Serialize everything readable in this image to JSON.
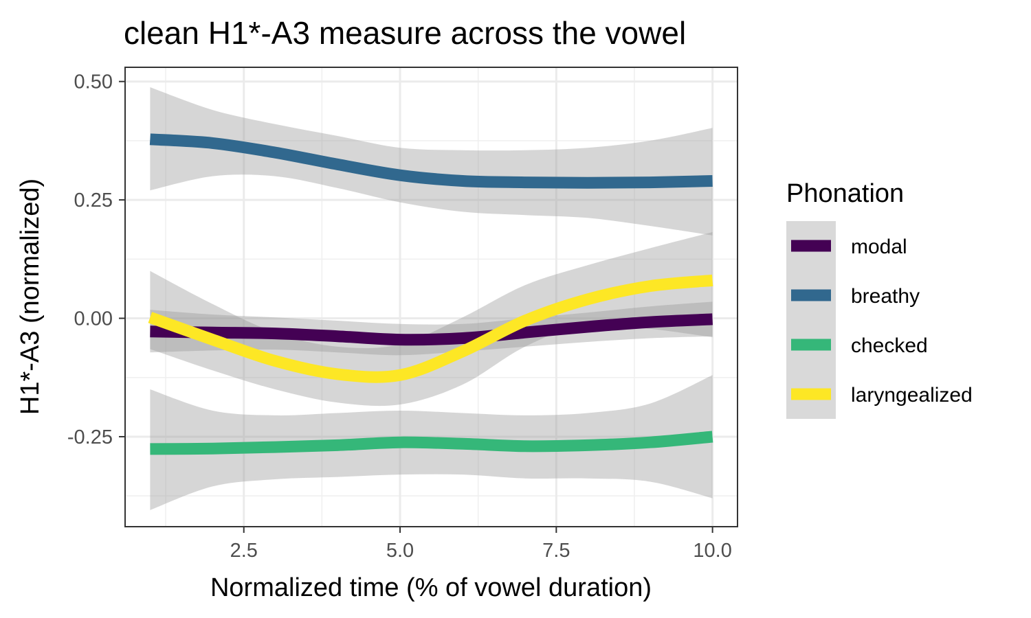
{
  "chart_data": {
    "type": "line",
    "title": "clean H1*-A3 measure across the vowel",
    "xlabel": "Normalized time (% of vowel duration)",
    "ylabel": "H1*-A3 (normalized)",
    "xlim": [
      0.6,
      10.4
    ],
    "ylim": [
      -0.44,
      0.53
    ],
    "xticks": [
      2.5,
      5.0,
      7.5,
      10.0
    ],
    "xtick_labels": [
      "2.5",
      "5.0",
      "7.5",
      "10.0"
    ],
    "yticks": [
      0.5,
      0.25,
      0.0,
      -0.25
    ],
    "ytick_labels": [
      "0.50",
      "0.25",
      "0.00",
      "-0.25"
    ],
    "grid": true,
    "legend": {
      "title": "Phonation",
      "position": "right"
    },
    "x": [
      1,
      2,
      3,
      4,
      5,
      6,
      7,
      8,
      9,
      10
    ],
    "series": [
      {
        "name": "modal",
        "color": "#440154",
        "values": [
          -0.028,
          -0.03,
          -0.032,
          -0.038,
          -0.045,
          -0.042,
          -0.03,
          -0.018,
          -0.008,
          -0.002
        ],
        "lower": [
          -0.072,
          -0.068,
          -0.066,
          -0.072,
          -0.078,
          -0.07,
          -0.06,
          -0.05,
          -0.042,
          -0.038
        ],
        "upper": [
          0.018,
          0.008,
          0.002,
          -0.005,
          -0.012,
          -0.012,
          0.0,
          0.012,
          0.025,
          0.035
        ]
      },
      {
        "name": "breathy",
        "color": "#31688E",
        "values": [
          0.378,
          0.37,
          0.35,
          0.325,
          0.302,
          0.29,
          0.287,
          0.286,
          0.287,
          0.29
        ],
        "lower": [
          0.27,
          0.3,
          0.3,
          0.275,
          0.245,
          0.225,
          0.218,
          0.212,
          0.195,
          0.175
        ],
        "upper": [
          0.488,
          0.44,
          0.41,
          0.385,
          0.36,
          0.355,
          0.355,
          0.36,
          0.375,
          0.402
        ]
      },
      {
        "name": "checked",
        "color": "#35B779",
        "values": [
          -0.276,
          -0.275,
          -0.272,
          -0.268,
          -0.262,
          -0.265,
          -0.27,
          -0.268,
          -0.262,
          -0.25
        ],
        "lower": [
          -0.405,
          -0.355,
          -0.34,
          -0.335,
          -0.33,
          -0.33,
          -0.338,
          -0.338,
          -0.345,
          -0.38
        ],
        "upper": [
          -0.15,
          -0.195,
          -0.205,
          -0.2,
          -0.195,
          -0.2,
          -0.205,
          -0.2,
          -0.18,
          -0.12
        ]
      },
      {
        "name": "laryngealized",
        "color": "#FDE725",
        "values": [
          0.002,
          -0.045,
          -0.09,
          -0.118,
          -0.12,
          -0.07,
          -0.005,
          0.04,
          0.068,
          0.08
        ],
        "lower": [
          -0.065,
          -0.11,
          -0.15,
          -0.178,
          -0.182,
          -0.14,
          -0.06,
          -0.012,
          -0.022,
          -0.04
        ],
        "upper": [
          0.1,
          0.03,
          -0.03,
          -0.06,
          -0.055,
          0.002,
          0.07,
          0.112,
          0.148,
          0.182
        ]
      }
    ]
  }
}
